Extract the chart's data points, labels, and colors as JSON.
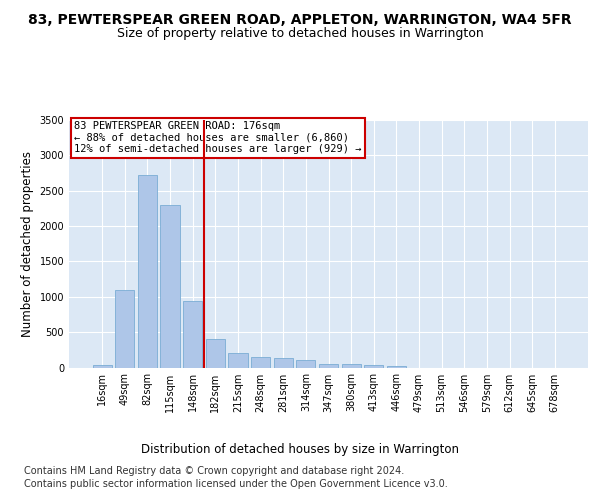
{
  "title_line1": "83, PEWTERSPEAR GREEN ROAD, APPLETON, WARRINGTON, WA4 5FR",
  "title_line2": "Size of property relative to detached houses in Warrington",
  "xlabel": "Distribution of detached houses by size in Warrington",
  "ylabel": "Number of detached properties",
  "categories": [
    "16sqm",
    "49sqm",
    "82sqm",
    "115sqm",
    "148sqm",
    "182sqm",
    "215sqm",
    "248sqm",
    "281sqm",
    "314sqm",
    "347sqm",
    "380sqm",
    "413sqm",
    "446sqm",
    "479sqm",
    "513sqm",
    "546sqm",
    "579sqm",
    "612sqm",
    "645sqm",
    "678sqm"
  ],
  "values": [
    30,
    1090,
    2720,
    2300,
    940,
    400,
    210,
    155,
    140,
    105,
    55,
    50,
    35,
    20,
    0,
    0,
    0,
    0,
    0,
    0,
    0
  ],
  "bar_color": "#aec6e8",
  "bar_edge_color": "#7aadd4",
  "vline_color": "#cc0000",
  "annotation_text": "83 PEWTERSPEAR GREEN ROAD: 176sqm\n← 88% of detached houses are smaller (6,860)\n12% of semi-detached houses are larger (929) →",
  "annotation_box_color": "#ffffff",
  "annotation_box_edge": "#cc0000",
  "ylim": [
    0,
    3500
  ],
  "yticks": [
    0,
    500,
    1000,
    1500,
    2000,
    2500,
    3000,
    3500
  ],
  "plot_bg_color": "#dce8f5",
  "footer_line1": "Contains HM Land Registry data © Crown copyright and database right 2024.",
  "footer_line2": "Contains public sector information licensed under the Open Government Licence v3.0.",
  "title_fontsize": 10,
  "subtitle_fontsize": 9,
  "axis_label_fontsize": 8.5,
  "tick_fontsize": 7,
  "footer_fontsize": 7,
  "annotation_fontsize": 7.5
}
